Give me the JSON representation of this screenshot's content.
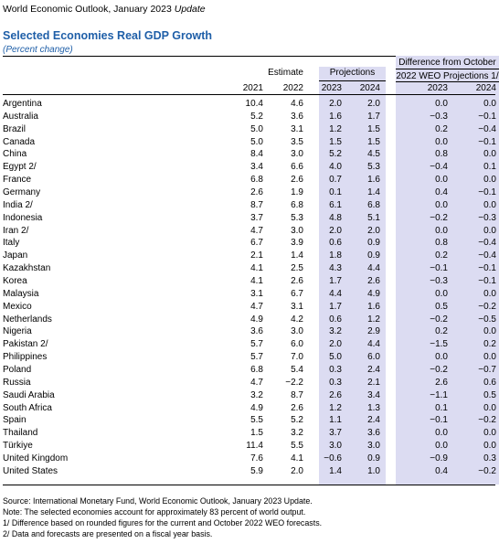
{
  "header": {
    "title": "World Economic Outlook, January 2023",
    "title_italic": "Update",
    "table_title": "Selected Economies Real GDP Growth",
    "units": "(Percent change)"
  },
  "columns": {
    "estimate": "Estimate",
    "projections": "Projections",
    "diff_line1": "Difference from October",
    "diff_line2": "2022 WEO Projections 1/",
    "years": [
      "2021",
      "2022",
      "2023",
      "2024",
      "2023",
      "2024"
    ]
  },
  "rows": [
    {
      "name": "Argentina",
      "v": [
        "10.4",
        "4.6",
        "2.0",
        "2.0",
        "0.0",
        "0.0"
      ]
    },
    {
      "name": "Australia",
      "v": [
        "5.2",
        "3.6",
        "1.6",
        "1.7",
        "−0.3",
        "−0.1"
      ]
    },
    {
      "name": "Brazil",
      "v": [
        "5.0",
        "3.1",
        "1.2",
        "1.5",
        "0.2",
        "−0.4"
      ]
    },
    {
      "name": "Canada",
      "v": [
        "5.0",
        "3.5",
        "1.5",
        "1.5",
        "0.0",
        "−0.1"
      ]
    },
    {
      "name": "China",
      "v": [
        "8.4",
        "3.0",
        "5.2",
        "4.5",
        "0.8",
        "0.0"
      ]
    },
    {
      "name": "Egypt 2/",
      "v": [
        "3.4",
        "6.6",
        "4.0",
        "5.3",
        "−0.4",
        "0.1"
      ]
    },
    {
      "name": "France",
      "v": [
        "6.8",
        "2.6",
        "0.7",
        "1.6",
        "0.0",
        "0.0"
      ]
    },
    {
      "name": "Germany",
      "v": [
        "2.6",
        "1.9",
        "0.1",
        "1.4",
        "0.4",
        "−0.1"
      ]
    },
    {
      "name": "India 2/",
      "v": [
        "8.7",
        "6.8",
        "6.1",
        "6.8",
        "0.0",
        "0.0"
      ]
    },
    {
      "name": "Indonesia",
      "v": [
        "3.7",
        "5.3",
        "4.8",
        "5.1",
        "−0.2",
        "−0.3"
      ]
    },
    {
      "name": "Iran 2/",
      "v": [
        "4.7",
        "3.0",
        "2.0",
        "2.0",
        "0.0",
        "0.0"
      ]
    },
    {
      "name": "Italy",
      "v": [
        "6.7",
        "3.9",
        "0.6",
        "0.9",
        "0.8",
        "−0.4"
      ]
    },
    {
      "name": "Japan",
      "v": [
        "2.1",
        "1.4",
        "1.8",
        "0.9",
        "0.2",
        "−0.4"
      ]
    },
    {
      "name": "Kazakhstan",
      "v": [
        "4.1",
        "2.5",
        "4.3",
        "4.4",
        "−0.1",
        "−0.1"
      ]
    },
    {
      "name": "Korea",
      "v": [
        "4.1",
        "2.6",
        "1.7",
        "2.6",
        "−0.3",
        "−0.1"
      ]
    },
    {
      "name": "Malaysia",
      "v": [
        "3.1",
        "6.7",
        "4.4",
        "4.9",
        "0.0",
        "0.0"
      ]
    },
    {
      "name": "Mexico",
      "v": [
        "4.7",
        "3.1",
        "1.7",
        "1.6",
        "0.5",
        "−0.2"
      ]
    },
    {
      "name": "Netherlands",
      "v": [
        "4.9",
        "4.2",
        "0.6",
        "1.2",
        "−0.2",
        "−0.5"
      ]
    },
    {
      "name": "Nigeria",
      "v": [
        "3.6",
        "3.0",
        "3.2",
        "2.9",
        "0.2",
        "0.0"
      ]
    },
    {
      "name": "Pakistan 2/",
      "v": [
        "5.7",
        "6.0",
        "2.0",
        "4.4",
        "−1.5",
        "0.2"
      ]
    },
    {
      "name": "Philippines",
      "v": [
        "5.7",
        "7.0",
        "5.0",
        "6.0",
        "0.0",
        "0.0"
      ]
    },
    {
      "name": "Poland",
      "v": [
        "6.8",
        "5.4",
        "0.3",
        "2.4",
        "−0.2",
        "−0.7"
      ]
    },
    {
      "name": "Russia",
      "v": [
        "4.7",
        "−2.2",
        "0.3",
        "2.1",
        "2.6",
        "0.6"
      ]
    },
    {
      "name": "Saudi Arabia",
      "v": [
        "3.2",
        "8.7",
        "2.6",
        "3.4",
        "−1.1",
        "0.5"
      ]
    },
    {
      "name": "South Africa",
      "v": [
        "4.9",
        "2.6",
        "1.2",
        "1.3",
        "0.1",
        "0.0"
      ]
    },
    {
      "name": "Spain",
      "v": [
        "5.5",
        "5.2",
        "1.1",
        "2.4",
        "−0.1",
        "−0.2"
      ]
    },
    {
      "name": "Thailand",
      "v": [
        "1.5",
        "3.2",
        "3.7",
        "3.6",
        "0.0",
        "0.0"
      ]
    },
    {
      "name": "Türkiye",
      "v": [
        "11.4",
        "5.5",
        "3.0",
        "3.0",
        "0.0",
        "0.0"
      ]
    },
    {
      "name": "United Kingdom",
      "v": [
        "7.6",
        "4.1",
        "−0.6",
        "0.9",
        "−0.9",
        "0.3"
      ]
    },
    {
      "name": "United States",
      "v": [
        "5.9",
        "2.0",
        "1.4",
        "1.0",
        "0.4",
        "−0.2"
      ]
    }
  ],
  "notes": [
    "Source: International Monetary Fund, World Economic Outlook, January 2023 Update.",
    "Note: The selected economies account for approximately 83 percent of world output.",
    "1/ Difference based on rounded figures for the current and October 2022 WEO forecasts.",
    "2/ Data and forecasts are presented on a fiscal year basis."
  ]
}
